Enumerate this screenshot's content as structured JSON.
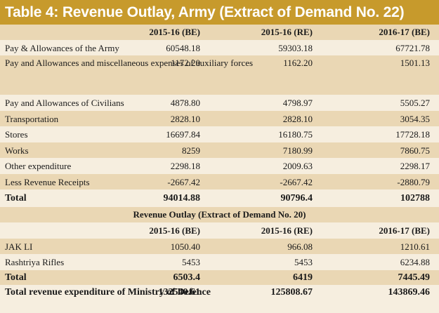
{
  "title": "Table 4: Revenue Outlay, Army (Extract of Demand No. 22)",
  "table1": {
    "headers": [
      "",
      "2015-16 (BE)",
      "2015-16 (RE)",
      "2016-17 (BE)"
    ],
    "rows": [
      {
        "label": "Pay & Allowances of the Army",
        "be1516": "60548.18",
        "re1516": "59303.18",
        "be1617": "67721.78"
      },
      {
        "label": "Pay and Allowances and miscellaneous expenses of auxiliary forces",
        "be1516": "1172.20",
        "re1516": "1162.20",
        "be1617": "1501.13"
      },
      {
        "label": "Pay and Allowances of Civilians",
        "be1516": "4878.80",
        "re1516": "4798.97",
        "be1617": "5505.27"
      },
      {
        "label": "Transportation",
        "be1516": "2828.10",
        "re1516": "2828.10",
        "be1617": "3054.35"
      },
      {
        "label": "Stores",
        "be1516": "16697.84",
        "re1516": "16180.75",
        "be1617": "17728.18"
      },
      {
        "label": "Works",
        "be1516": "8259",
        "re1516": "7180.99",
        "be1617": "7860.75"
      },
      {
        "label": "Other expenditure",
        "be1516": "2298.18",
        "re1516": "2009.63",
        "be1617": "2298.17"
      },
      {
        "label": "Less Revenue Receipts",
        "be1516": "-2667.42",
        "re1516": "-2667.42",
        "be1617": "-2880.79"
      }
    ],
    "total": {
      "label": "Total",
      "be1516": "94014.88",
      "re1516": "90796.4",
      "be1617": "102788"
    }
  },
  "table2": {
    "subtitle": "Revenue Outlay (Extract of Demand No. 20)",
    "headers": [
      "",
      "2015-16 (BE)",
      "2015-16 (RE)",
      "2016-17 (BE)"
    ],
    "rows": [
      {
        "label": "JAK LI",
        "be1516": "1050.40",
        "re1516": "966.08",
        "be1617": "1210.61"
      },
      {
        "label": "Rashtriya Rifles",
        "be1516": "5453",
        "re1516": "5453",
        "be1617": "6234.88"
      }
    ],
    "total": {
      "label": "Total",
      "be1516": "6503.4",
      "re1516": "6419",
      "be1617": "7445.49"
    }
  },
  "grand_total": {
    "label": "Total revenue expenditure of Ministry of Defence",
    "be1516": "132540.61",
    "re1516": "125808.67",
    "be1617": "143869.46"
  }
}
